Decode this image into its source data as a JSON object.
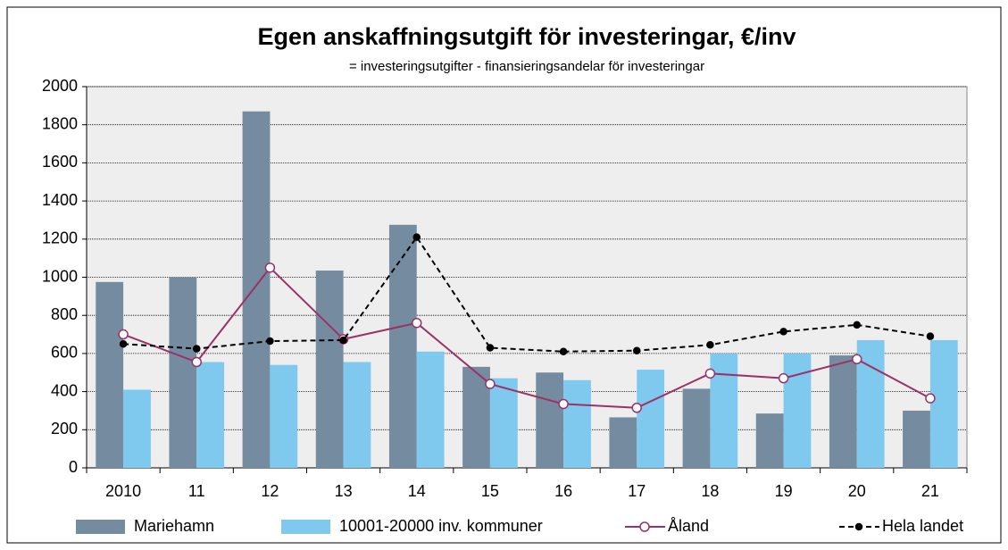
{
  "chart_data": {
    "type": "bar",
    "title": "Egen anskaffningsutgift för investeringar, €/inv",
    "subtitle": "= investeringsutgifter  - finansieringsandelar  för investeringar",
    "categories": [
      "2010",
      "11",
      "12",
      "13",
      "14",
      "15",
      "16",
      "17",
      "18",
      "19",
      "20",
      "21"
    ],
    "series": [
      {
        "name": "Mariehamn",
        "type": "bar",
        "color": "#758ca0",
        "values": [
          975,
          1000,
          1870,
          1035,
          1275,
          530,
          500,
          265,
          415,
          285,
          590,
          300
        ]
      },
      {
        "name": "10001-20000 inv. kommuner",
        "type": "bar",
        "color": "#7fc9ef",
        "values": [
          410,
          555,
          540,
          555,
          610,
          470,
          460,
          515,
          600,
          600,
          670,
          670
        ]
      },
      {
        "name": "Åland",
        "type": "line",
        "color": "#993366",
        "values": [
          700,
          555,
          1050,
          675,
          760,
          440,
          335,
          315,
          495,
          470,
          570,
          365
        ]
      },
      {
        "name": "Hela landet",
        "type": "line",
        "color": "#000000",
        "dashed": true,
        "values": [
          650,
          625,
          665,
          670,
          1210,
          630,
          610,
          615,
          645,
          715,
          750,
          690
        ]
      }
    ],
    "ylim": [
      0,
      2000
    ],
    "yticks": [
      0,
      200,
      400,
      600,
      800,
      1000,
      1200,
      1400,
      1600,
      1800,
      2000
    ],
    "grid": true,
    "legend": "bottom"
  }
}
